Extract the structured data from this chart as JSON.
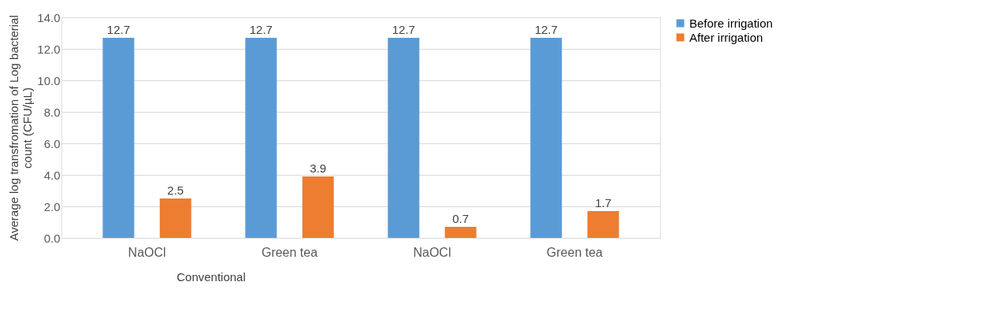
{
  "chart_data": {
    "type": "bar",
    "categories": [
      "NaOCl",
      "Green tea",
      "NaOCl",
      "Green tea"
    ],
    "ylabel": "Average log transfromation of Log bacterial count (CFU/µL)",
    "series": [
      {
        "name": "Before irrigation",
        "color": "#5b9bd5",
        "values": [
          12.7,
          12.7,
          12.7,
          12.7
        ]
      },
      {
        "name": "After irrigation",
        "color": "#ed7d31",
        "values": [
          2.5,
          3.9,
          0.7,
          1.7
        ]
      }
    ],
    "ylim": [
      0,
      14
    ],
    "yticks": [
      {
        "value": 0,
        "label": "0.0"
      },
      {
        "value": 2,
        "label": "2.0"
      },
      {
        "value": 4,
        "label": "4.0"
      },
      {
        "value": 6,
        "label": "6.0"
      },
      {
        "value": 8,
        "label": "8.0"
      },
      {
        "value": 10,
        "label": "10.0"
      },
      {
        "value": 12,
        "label": "12.0"
      },
      {
        "value": 14,
        "label": "14.0"
      }
    ],
    "grid": "y",
    "legend": "right",
    "data_labels": true,
    "annotations": [
      "Conventional"
    ]
  }
}
